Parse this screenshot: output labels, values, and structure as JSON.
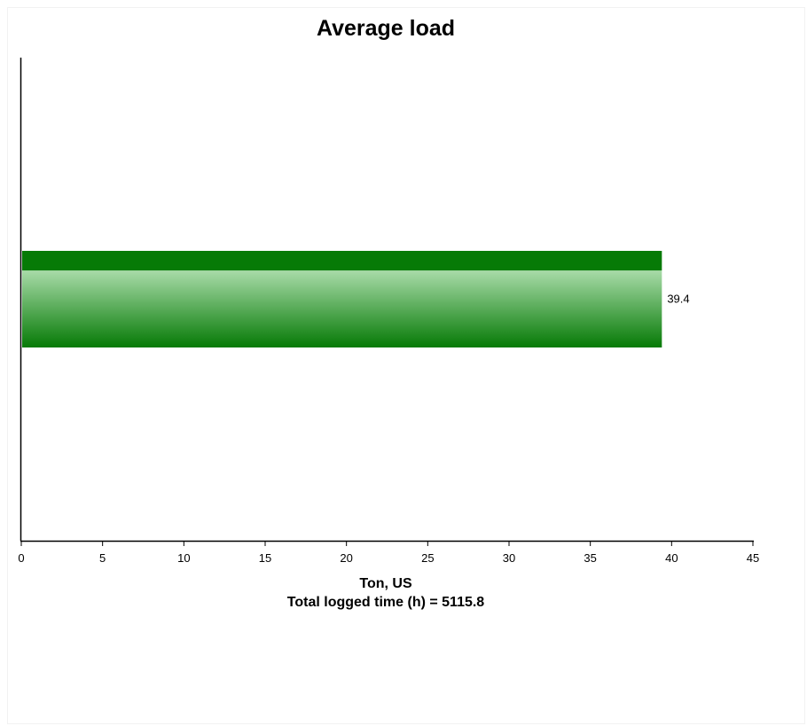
{
  "chart_data": {
    "type": "bar",
    "orientation": "horizontal",
    "title": "Average load",
    "xlabel": "Ton, US",
    "subtitle_below_axis": "Total logged time (h) = 5115.8",
    "categories": [
      ""
    ],
    "values": [
      39.4
    ],
    "data_labels": [
      "39.4"
    ],
    "xlim": [
      0,
      45
    ],
    "xticks": [
      0,
      5,
      10,
      15,
      20,
      25,
      30,
      35,
      40,
      45
    ],
    "grid": false,
    "legend": "none",
    "bar_color": "#067a06",
    "bar_highlight": "#a8dba8"
  }
}
